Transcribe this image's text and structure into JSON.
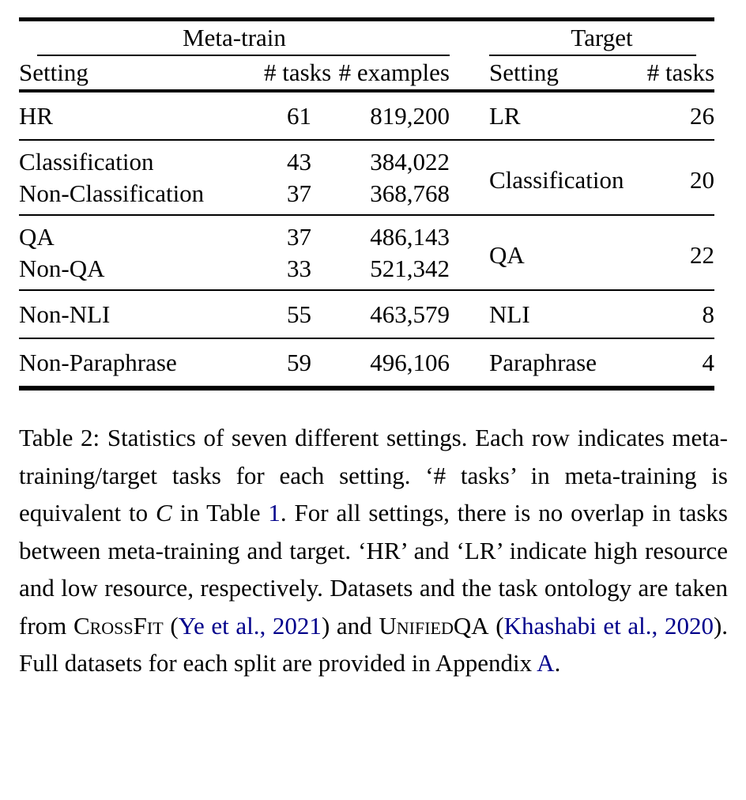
{
  "colors": {
    "text": "#000000",
    "link": "#00008B",
    "background": "#ffffff",
    "rule": "#000000"
  },
  "table": {
    "group_headers": {
      "meta": "Meta-train",
      "target": "Target"
    },
    "col_headers": {
      "meta_setting": "Setting",
      "meta_tasks": "# tasks",
      "meta_examples": "# examples",
      "target_setting": "Setting",
      "target_tasks": "# tasks"
    },
    "groups": [
      {
        "meta_rows": [
          {
            "setting": "HR",
            "tasks": "61",
            "examples": "819,200"
          }
        ],
        "target": {
          "setting": "LR",
          "tasks": "26"
        }
      },
      {
        "meta_rows": [
          {
            "setting": "Classification",
            "tasks": "43",
            "examples": "384,022"
          },
          {
            "setting": "Non-Classification",
            "tasks": "37",
            "examples": "368,768"
          }
        ],
        "target": {
          "setting": "Classification",
          "tasks": "20"
        }
      },
      {
        "meta_rows": [
          {
            "setting": "QA",
            "tasks": "37",
            "examples": "486,143"
          },
          {
            "setting": "Non-QA",
            "tasks": "33",
            "examples": "521,342"
          }
        ],
        "target": {
          "setting": "QA",
          "tasks": "22"
        }
      },
      {
        "meta_rows": [
          {
            "setting": "Non-NLI",
            "tasks": "55",
            "examples": "463,579"
          }
        ],
        "target": {
          "setting": "NLI",
          "tasks": "8"
        }
      },
      {
        "meta_rows": [
          {
            "setting": "Non-Paraphrase",
            "tasks": "59",
            "examples": "496,106"
          }
        ],
        "target": {
          "setting": "Paraphrase",
          "tasks": "4"
        }
      }
    ]
  },
  "caption": {
    "segments": [
      {
        "t": "Table 2: Statistics of seven different settings. Each row indicates meta-training/target tasks for each setting. ‘# tasks’ in meta-training is equivalent to "
      },
      {
        "t": "C",
        "s": "mathit"
      },
      {
        "t": " in Table "
      },
      {
        "t": "1",
        "s": "link"
      },
      {
        "t": ". For all settings, there is no overlap in tasks between meta-training and target. ‘HR’ and ‘LR’ indicate high resource and low resource, respectively. Datasets and the task ontology are taken from "
      },
      {
        "t": "CrossFit",
        "s": "sc"
      },
      {
        "t": " ("
      },
      {
        "t": "Ye et al., 2021",
        "s": "link"
      },
      {
        "t": ") and "
      },
      {
        "t": "UnifiedQA",
        "s": "sc"
      },
      {
        "t": " ("
      },
      {
        "t": "Khashabi et al., 2020",
        "s": "link"
      },
      {
        "t": "). Full datasets for each split are provided in Appendix "
      },
      {
        "t": "A",
        "s": "link"
      },
      {
        "t": "."
      }
    ]
  }
}
